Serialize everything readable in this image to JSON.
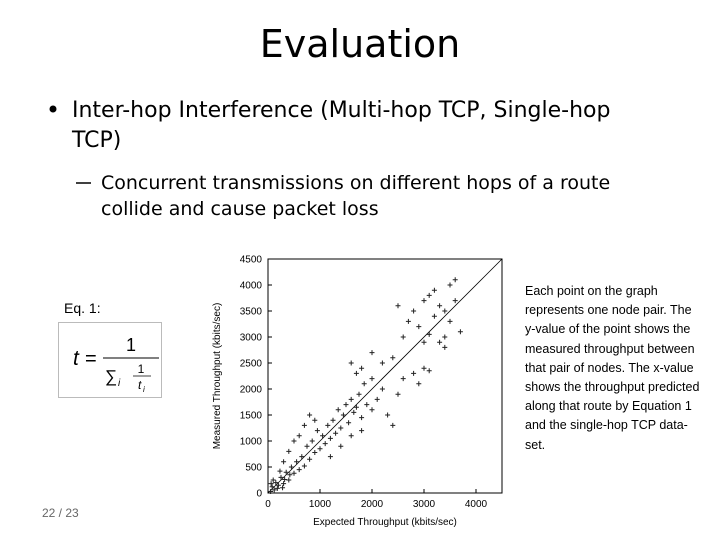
{
  "title": "Evaluation",
  "bullet": "Inter-hop Interference (Multi-hop TCP, Single-hop TCP)",
  "sub_bullet": "Concurrent transmissions on different hops of a route collide and cause packet loss",
  "eq_label": "Eq. 1:",
  "equation": {
    "lhs": "t",
    "equals": "=",
    "num": "1",
    "sum": "∑",
    "sub": "i",
    "inner_num": "1",
    "inner_den": "t",
    "inner_sub": "i"
  },
  "side_note": "Each point on the graph represents one node pair. The y-value of the point shows the measured throughput between that pair of nodes. The x-value shows the throughput predicted along that route by Equation 1 and the single-hop TCP data-set.",
  "page": "22 / 23",
  "chart_data": {
    "type": "scatter",
    "x_label": "Expected Throughput (kbits/sec)",
    "y_label": "Measured Throughput (kbits/sec)",
    "xlim": [
      0,
      4500
    ],
    "ylim": [
      0,
      4500
    ],
    "xticks": [
      0,
      1000,
      2000,
      3000,
      4000
    ],
    "yticks": [
      0,
      500,
      1000,
      1500,
      2000,
      2500,
      3000,
      3500,
      4000,
      4500
    ],
    "color": "#222222",
    "x": [
      50,
      80,
      120,
      150,
      200,
      180,
      250,
      300,
      320,
      350,
      400,
      420,
      100,
      60,
      230,
      280,
      450,
      500,
      550,
      600,
      650,
      700,
      750,
      800,
      850,
      900,
      950,
      1000,
      1050,
      1100,
      1150,
      1200,
      1250,
      1300,
      1350,
      1400,
      1450,
      1500,
      1550,
      1600,
      1650,
      1700,
      1750,
      1800,
      1850,
      1900,
      600,
      700,
      800,
      900,
      400,
      500,
      300,
      1200,
      1400,
      1600,
      1800,
      2000,
      2100,
      2200,
      1700,
      1600,
      1800,
      2000,
      2300,
      2400,
      2500,
      2000,
      2200,
      2400,
      2600,
      2800,
      2900,
      3000,
      3100,
      2600,
      2700,
      2800,
      2900,
      3000,
      3100,
      3200,
      3300,
      3400,
      3500,
      3600,
      3700,
      3300,
      3400,
      2500,
      3500,
      3600,
      3200,
      3100,
      3400,
      3000
    ],
    "values": [
      30,
      120,
      60,
      200,
      150,
      90,
      300,
      180,
      260,
      400,
      250,
      350,
      250,
      180,
      420,
      100,
      500,
      380,
      600,
      450,
      700,
      520,
      900,
      650,
      1000,
      780,
      1200,
      850,
      1100,
      950,
      1300,
      1050,
      1400,
      1150,
      1600,
      1250,
      1500,
      1700,
      1350,
      1800,
      1550,
      1650,
      1900,
      1450,
      2100,
      1700,
      1100,
      1300,
      1500,
      1400,
      800,
      1000,
      600,
      700,
      900,
      1100,
      1200,
      1600,
      1800,
      2000,
      2300,
      2500,
      2400,
      2200,
      1500,
      1300,
      1900,
      2700,
      2500,
      2600,
      2200,
      2300,
      2100,
      2400,
      2350,
      3000,
      3300,
      3500,
      3200,
      3700,
      3800,
      3400,
      3600,
      3500,
      3300,
      3700,
      3100,
      2900,
      3000,
      3600,
      4000,
      4100,
      3900,
      3050,
      2800,
      2900
    ]
  }
}
